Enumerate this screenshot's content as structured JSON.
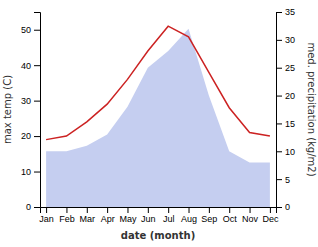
{
  "chart_data": {
    "type": "line",
    "categories": [
      "Jan",
      "Feb",
      "Mar",
      "Apr",
      "May",
      "Jun",
      "Jul",
      "Aug",
      "Sep",
      "Oct",
      "Nov",
      "Dec"
    ],
    "xlabel": "date (month)",
    "ylabel": "max temp (C)",
    "y2label": "med. precipitation (kg/m2)",
    "series": [
      {
        "type": "area",
        "axis": "y2",
        "color": "#c5cef0",
        "values": [
          10,
          10,
          11,
          13,
          18,
          25,
          28,
          32,
          20,
          10,
          8,
          8
        ]
      },
      {
        "type": "line",
        "color": "#cc2222",
        "values": [
          19,
          20,
          24,
          29,
          36,
          44,
          51,
          48,
          38,
          28,
          21,
          20
        ]
      }
    ],
    "ylim": [
      0,
      55
    ],
    "yticks": [
      0,
      10,
      20,
      30,
      40,
      50
    ],
    "y2lim": [
      0,
      35
    ],
    "y2ticks": [
      0,
      5,
      10,
      15,
      20,
      25,
      30,
      35
    ]
  }
}
